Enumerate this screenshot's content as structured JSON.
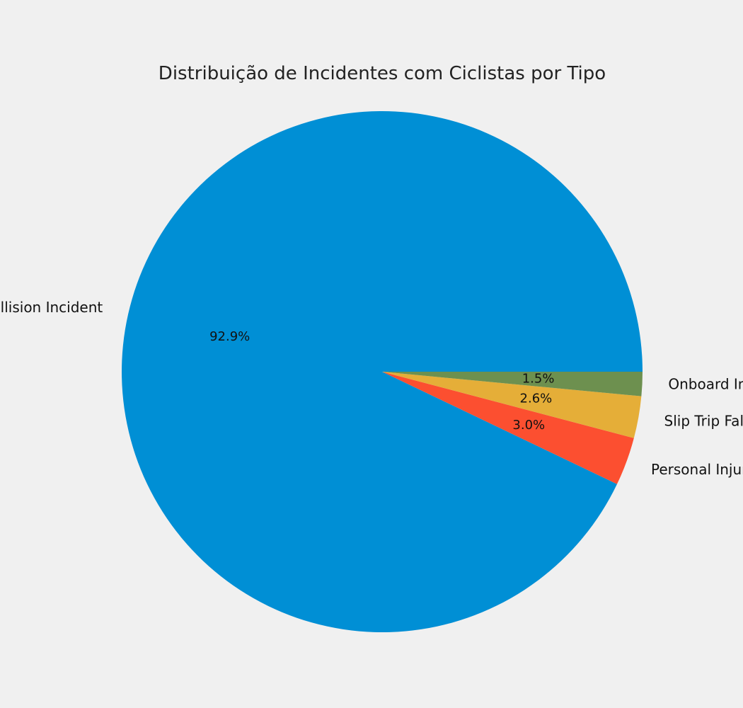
{
  "chart_data": {
    "type": "pie",
    "title": "Distribuição de Incidentes com Ciclistas por Tipo",
    "slices": [
      {
        "label": "Collision Incident",
        "value": 92.9,
        "pct_label": "92.9%",
        "color": "#008fd5"
      },
      {
        "label": "Personal Injury",
        "value": 3.0,
        "pct_label": "3.0%",
        "color": "#fc4f30"
      },
      {
        "label": "Slip Trip Fall",
        "value": 2.6,
        "pct_label": "2.6%",
        "color": "#e5ae38"
      },
      {
        "label": "Onboard Injuries",
        "value": 1.5,
        "pct_label": "1.5%",
        "color": "#6d904f"
      }
    ],
    "start_angle_deg": 0,
    "direction": "counterclockwise",
    "legend": "none"
  }
}
